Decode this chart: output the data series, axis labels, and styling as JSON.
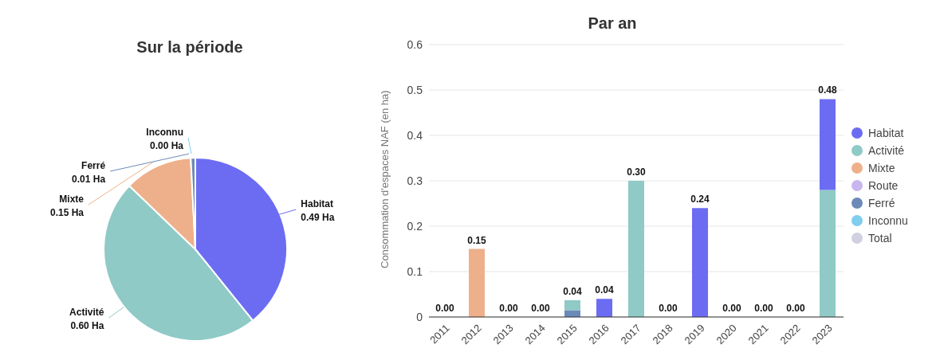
{
  "chart_data": [
    {
      "type": "pie",
      "title": "Sur la période",
      "categories": [
        "Habitat",
        "Activité",
        "Mixte",
        "Ferré",
        "Inconnu"
      ],
      "values": [
        0.49,
        0.6,
        0.15,
        0.01,
        0.0
      ],
      "colors": [
        "#6c6cf2",
        "#8fcac6",
        "#eeb08a",
        "#6c8ab8",
        "#7fcdef"
      ],
      "value_labels": [
        "0.49 Ha",
        "0.60 Ha",
        "0.15 Ha",
        "0.01 Ha",
        "0.00 Ha"
      ],
      "legend": false
    },
    {
      "type": "bar",
      "title": "Par an",
      "ylabel": "Consommation d'espaces NAF (en ha)",
      "categories": [
        "2011",
        "2012",
        "2013",
        "2014",
        "2015",
        "2016",
        "2017",
        "2018",
        "2019",
        "2020",
        "2021",
        "2022",
        "2023"
      ],
      "stacked": true,
      "ylim": [
        0,
        0.6
      ],
      "yticks": [
        0,
        0.1,
        0.2,
        0.3,
        0.4,
        0.5,
        0.6
      ],
      "grid": "y",
      "legend": "right",
      "series": [
        {
          "name": "Total",
          "color": "#d0d0e2",
          "values": [
            null,
            null,
            null,
            null,
            null,
            null,
            null,
            null,
            null,
            null,
            null,
            null,
            null
          ]
        },
        {
          "name": "Inconnu",
          "color": "#7fcdef",
          "values": [
            null,
            null,
            null,
            null,
            null,
            null,
            null,
            null,
            null,
            null,
            null,
            null,
            null
          ]
        },
        {
          "name": "Ferré",
          "color": "#6c8ab8",
          "values": [
            null,
            null,
            null,
            null,
            0.015,
            null,
            null,
            null,
            null,
            null,
            null,
            null,
            null
          ]
        },
        {
          "name": "Route",
          "color": "#c9b6ef",
          "values": [
            null,
            null,
            null,
            null,
            null,
            null,
            null,
            null,
            null,
            null,
            null,
            null,
            null
          ]
        },
        {
          "name": "Mixte",
          "color": "#eeb08a",
          "values": [
            null,
            0.15,
            null,
            null,
            null,
            null,
            null,
            null,
            null,
            null,
            null,
            null,
            null
          ]
        },
        {
          "name": "Activité",
          "color": "#8fcac6",
          "values": [
            null,
            null,
            null,
            null,
            0.022,
            null,
            0.3,
            null,
            null,
            null,
            null,
            null,
            0.28
          ]
        },
        {
          "name": "Habitat",
          "color": "#6c6cf2",
          "values": [
            null,
            null,
            null,
            null,
            null,
            0.04,
            null,
            null,
            0.24,
            null,
            null,
            null,
            0.2
          ]
        }
      ],
      "totals": [
        "0.00",
        "0.15",
        "0.00",
        "0.00",
        "0.04",
        "0.04",
        "0.30",
        "0.00",
        "0.24",
        "0.00",
        "0.00",
        "0.00",
        "0.48"
      ]
    }
  ]
}
